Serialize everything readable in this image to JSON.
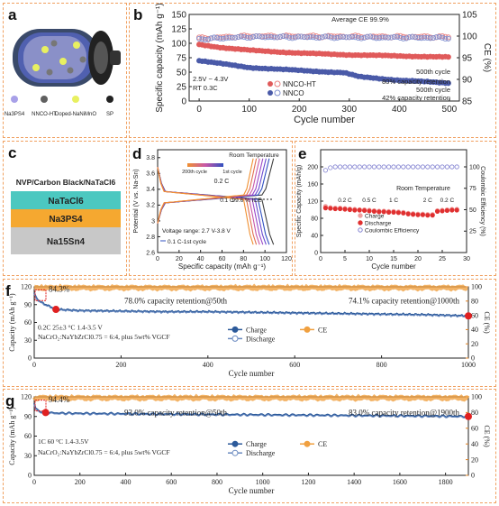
{
  "panels": {
    "a": {
      "label": "a",
      "legend": [
        {
          "text": "Na3PS4",
          "color": "#a8a0e8"
        },
        {
          "text": "NNCO-HT",
          "color": "#606060"
        },
        {
          "text": "Doped-NaNiMnO",
          "color": "#e8f060"
        },
        {
          "text": "SP",
          "color": "#222222"
        }
      ]
    },
    "c": {
      "label": "c",
      "layers": [
        {
          "text": "NVP/Carbon Black/NaTaCl6",
          "color": "#ffffff"
        },
        {
          "text": "NaTaCl6",
          "color": "#4cc8c0"
        },
        {
          "text": "Na3PS4",
          "color": "#f5a830"
        },
        {
          "text": "Na15Sn4",
          "color": "#c8c8c8"
        }
      ]
    }
  },
  "chart_data": [
    {
      "id": "b",
      "label": "b",
      "type": "scatter",
      "xlabel": "Cycle number",
      "ylabel": "Specific capacity (mAh g⁻¹)",
      "y2label": "CE (%)",
      "xlim": [
        -20,
        520
      ],
      "ylim": [
        0,
        150
      ],
      "y2lim": [
        85,
        105
      ],
      "xticks": [
        0,
        100,
        200,
        300,
        400,
        500
      ],
      "yticks": [
        0,
        25,
        50,
        75,
        100,
        125,
        150
      ],
      "y2ticks": [
        85,
        90,
        95,
        100,
        105
      ],
      "series": [
        {
          "name": "NNCO-HT",
          "color": "#e05a5a",
          "points": [
            [
              0,
              98
            ],
            [
              50,
              92
            ],
            [
              100,
              88
            ],
            [
              200,
              83
            ],
            [
              300,
              80
            ],
            [
              400,
              78
            ],
            [
              500,
              76
            ]
          ]
        },
        {
          "name": "NNCO",
          "color": "#4a5aa8",
          "points": [
            [
              0,
              70
            ],
            [
              50,
              64
            ],
            [
              100,
              58
            ],
            [
              200,
              53
            ],
            [
              290,
              49
            ],
            [
              320,
              42
            ],
            [
              400,
              36
            ],
            [
              500,
              31
            ]
          ]
        },
        {
          "name": "CE NNCO-HT",
          "color": "#e88080",
          "axis": "y2",
          "points": [
            [
              0,
              99.5
            ],
            [
              100,
              100
            ],
            [
              300,
              99.9
            ],
            [
              500,
              99.8
            ]
          ]
        },
        {
          "name": "CE NNCO",
          "color": "#8090d0",
          "axis": "y2",
          "points": [
            [
              0,
              99.3
            ],
            [
              100,
              99.8
            ],
            [
              300,
              99.7
            ],
            [
              500,
              99.6
            ]
          ]
        }
      ],
      "annotations": [
        "Average CE 99.9%",
        "500th cycle",
        "80% capacity retention",
        "500th cycle",
        "42% capacity retention",
        "2.5V ~ 4.3V",
        "RT 0.3C"
      ]
    },
    {
      "id": "d",
      "label": "d",
      "type": "line",
      "xlabel": "Specific capacity (mAh g⁻¹)",
      "ylabel": "Potential (V vs. Na-Sn)",
      "xlim": [
        0,
        120
      ],
      "ylim": [
        2.6,
        3.9
      ],
      "xticks": [
        0,
        20,
        40,
        60,
        80,
        100,
        120
      ],
      "yticks": [
        2.6,
        2.8,
        3.0,
        3.2,
        3.4,
        3.6,
        3.8
      ],
      "annotations": [
        "Room Temperature",
        "200th cycle",
        "1st cycle",
        "0.2 C",
        "0.1 C",
        "99.6 % ICE",
        "Voltage range: 2.7 V-3.8 V",
        "0.1 C-1st cycle"
      ],
      "curves": [
        {
          "cap": 108,
          "color": "#404040"
        },
        {
          "cap": 104,
          "color": "#3050c0"
        },
        {
          "cap": 101,
          "color": "#6a4ad0"
        },
        {
          "cap": 98,
          "color": "#9a48c8"
        },
        {
          "cap": 95,
          "color": "#c858a8"
        },
        {
          "cap": 92,
          "color": "#e07050"
        },
        {
          "cap": 89,
          "color": "#f09030"
        }
      ]
    },
    {
      "id": "e",
      "label": "e",
      "type": "scatter",
      "xlabel": "Cycle number",
      "ylabel": "Specific Capacity (mAh/g)",
      "y2label": "Coulombic Efficiency (%)",
      "xlim": [
        0,
        30
      ],
      "ylim": [
        0,
        240
      ],
      "y2lim": [
        0,
        120
      ],
      "xticks": [
        0,
        5,
        10,
        15,
        20,
        25,
        30
      ],
      "yticks": [
        0,
        40,
        80,
        120,
        160,
        200
      ],
      "y2ticks": [
        25,
        50,
        75,
        100
      ],
      "rate_labels": [
        "0.2 C",
        "0.5 C",
        "1 C",
        "2 C",
        "0.2 C"
      ],
      "series": [
        {
          "name": "Charge",
          "color": "#f0a0a0",
          "values": [
            108,
            105,
            104,
            104,
            103,
            102,
            101,
            100,
            100,
            99,
            98,
            97,
            97,
            96,
            96,
            95,
            94,
            92,
            91,
            90,
            90,
            89,
            89,
            98,
            99,
            100,
            101,
            101
          ]
        },
        {
          "name": "Discharge",
          "color": "#e03030",
          "values": [
            104,
            103,
            102,
            102,
            101,
            100,
            99,
            99,
            98,
            97,
            96,
            95,
            95,
            94,
            94,
            93,
            92,
            90,
            89,
            88,
            88,
            87,
            87,
            96,
            97,
            98,
            99,
            99
          ]
        },
        {
          "name": "Coulombic Efficiency",
          "color": "#8080d0",
          "axis": "y2",
          "values": [
            96,
            99,
            100,
            100,
            100,
            100,
            100,
            100,
            100,
            100,
            100,
            100,
            100,
            100,
            100,
            100,
            100,
            100,
            100,
            100,
            100,
            100,
            100,
            100,
            100,
            100,
            100,
            100
          ]
        }
      ],
      "annotations": [
        "Room Temperature"
      ]
    },
    {
      "id": "f",
      "label": "f",
      "type": "scatter",
      "xlabel": "Cycle number",
      "ylabel": "Capacity (mAh g⁻¹)",
      "y2label": "CE (%)",
      "xlim": [
        0,
        1000
      ],
      "ylim": [
        0,
        120
      ],
      "y2lim": [
        0,
        100
      ],
      "xticks": [
        0,
        200,
        400,
        600,
        800,
        1000
      ],
      "yticks": [
        0,
        30,
        60,
        90,
        120
      ],
      "y2ticks": [
        0,
        20,
        40,
        60,
        80,
        100
      ],
      "legend": [
        "Charge",
        "Discharge",
        "CE"
      ],
      "capacity": [
        [
          0,
          110
        ],
        [
          5,
          100
        ],
        [
          20,
          92
        ],
        [
          50,
          82
        ],
        [
          100,
          80
        ],
        [
          200,
          79
        ],
        [
          300,
          78
        ],
        [
          400,
          78
        ],
        [
          500,
          77
        ],
        [
          600,
          76
        ],
        [
          700,
          75
        ],
        [
          800,
          74
        ],
        [
          900,
          73
        ],
        [
          1000,
          71
        ]
      ],
      "ce": 99.9,
      "annotations": [
        "84.3%",
        "78.0% capacity retention@50th",
        "74.1% capacity retention@1000th",
        "0.2C 25±3 °C   1.4-3.5 V",
        "NaCrO₂:NaYbZrCl0.75 = 6:4, plus 5wt% VGCF"
      ]
    },
    {
      "id": "g",
      "label": "g",
      "type": "scatter",
      "xlabel": "Cycle number",
      "ylabel": "Capacity (mAh g⁻¹)",
      "y2label": "CE (%)",
      "xlim": [
        0,
        1900
      ],
      "ylim": [
        0,
        120
      ],
      "y2lim": [
        0,
        100
      ],
      "xticks": [
        0,
        200,
        400,
        600,
        800,
        1000,
        1200,
        1400,
        1600,
        1800
      ],
      "yticks": [
        0,
        30,
        60,
        90,
        120
      ],
      "y2ticks": [
        0,
        20,
        40,
        60,
        80,
        100
      ],
      "legend": [
        "Charge",
        "Discharge",
        "CE"
      ],
      "capacity": [
        [
          0,
          110
        ],
        [
          5,
          103
        ],
        [
          20,
          98
        ],
        [
          50,
          96
        ],
        [
          100,
          95
        ],
        [
          400,
          94
        ],
        [
          800,
          93
        ],
        [
          1200,
          92
        ],
        [
          1600,
          91
        ],
        [
          1900,
          90
        ]
      ],
      "ce": 99.9,
      "annotations": [
        "94.4%",
        "93.0% capacity retention@50th",
        "83.0% capacity retention@1900th",
        "1C 60 °C   1.4-3.5V",
        "NaCrO₂:NaYbZrCl0.75 = 6:4, plus 5wt% VGCF"
      ]
    }
  ]
}
